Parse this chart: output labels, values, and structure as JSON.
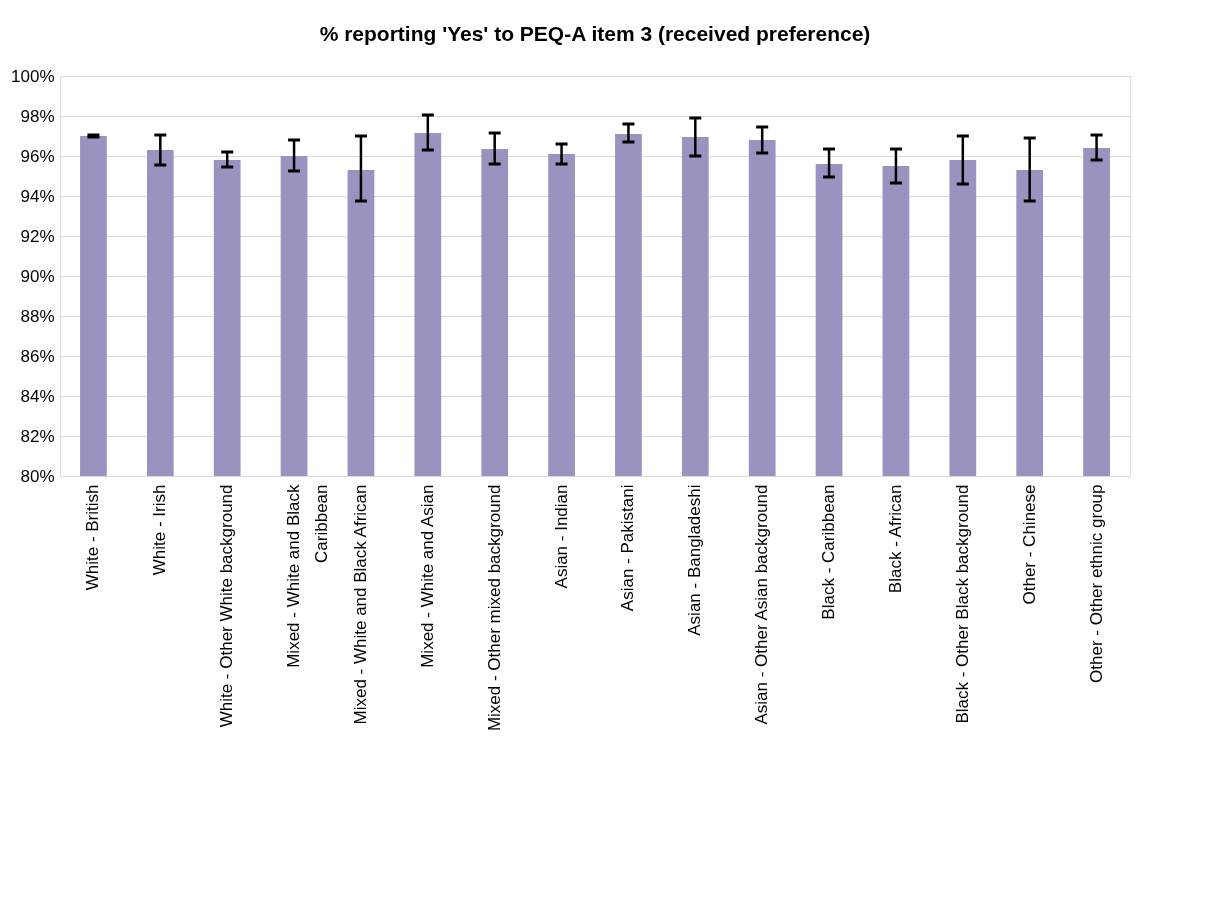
{
  "chart_data": {
    "type": "bar",
    "title": "% reporting 'Yes' to PEQ-A item 3 (received preference)",
    "categories": [
      "White - British",
      "White - Irish",
      "White - Other White background",
      "Mixed - White and Black Caribbean",
      "Mixed - White and Black African",
      "Mixed - White and Asian",
      "Mixed - Other mixed background",
      "Asian - Indian",
      "Asian - Pakistani",
      "Asian - Bangladeshi",
      "Asian - Other Asian background",
      "Black - Caribbean",
      "Black - African",
      "Black - Other Black background",
      "Other - Chinese",
      "Other - Other ethnic group"
    ],
    "values": [
      97.0,
      96.3,
      95.8,
      96.0,
      95.3,
      97.15,
      96.35,
      96.1,
      97.1,
      96.95,
      96.8,
      95.6,
      95.5,
      95.8,
      95.3,
      96.4
    ],
    "errors": [
      [
        96.95,
        97.05
      ],
      [
        95.55,
        97.05
      ],
      [
        95.45,
        96.2
      ],
      [
        95.25,
        96.8
      ],
      [
        93.75,
        97.0
      ],
      [
        96.3,
        98.05
      ],
      [
        95.6,
        97.15
      ],
      [
        95.6,
        96.6
      ],
      [
        96.7,
        97.6
      ],
      [
        96.0,
        97.9
      ],
      [
        96.15,
        97.45
      ],
      [
        94.95,
        96.35
      ],
      [
        94.65,
        96.35
      ],
      [
        94.6,
        97.0
      ],
      [
        93.75,
        96.9
      ],
      [
        95.8,
        97.05
      ]
    ],
    "color": "#9b93bf",
    "ylim": [
      80,
      100
    ],
    "yticks": [
      {
        "value": 80,
        "label": "80%"
      },
      {
        "value": 82,
        "label": "82%"
      },
      {
        "value": 84,
        "label": "84%"
      },
      {
        "value": 86,
        "label": "86%"
      },
      {
        "value": 88,
        "label": "88%"
      },
      {
        "value": 90,
        "label": "90%"
      },
      {
        "value": 92,
        "label": "92%"
      },
      {
        "value": 94,
        "label": "94%"
      },
      {
        "value": 96,
        "label": "96%"
      },
      {
        "value": 98,
        "label": "98%"
      },
      {
        "value": 100,
        "label": "100%"
      }
    ],
    "grid": "y"
  }
}
